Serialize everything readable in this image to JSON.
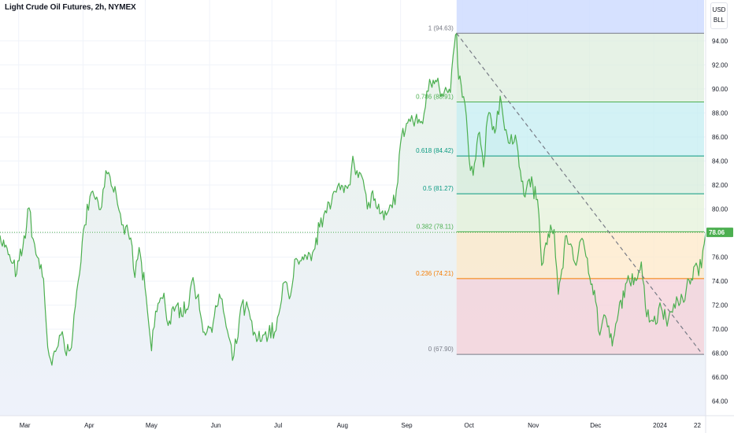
{
  "header": {
    "title": "Light Crude Oil Futures, 2h, NYMEX"
  },
  "units": {
    "currency": "USD",
    "volume_unit": "BLL"
  },
  "current_price_label": "78.06",
  "chart_data": {
    "type": "line",
    "title": "Light Crude Oil Futures, 2h, NYMEX",
    "xlabel": "",
    "ylabel": "",
    "ylim": [
      62.8,
      97.4
    ],
    "x_tick_labels": [
      "Mar",
      "Apr",
      "May",
      "Jun",
      "Jul",
      "Aug",
      "Sep",
      "Oct",
      "Nov",
      "Dec",
      "2024",
      "22"
    ],
    "y_ticks": [
      "64.00",
      "66.00",
      "68.00",
      "70.00",
      "72.00",
      "74.00",
      "76.00",
      "78.00",
      "80.00",
      "82.00",
      "84.00",
      "86.00",
      "88.00",
      "90.00",
      "92.00",
      "94.00"
    ],
    "series": [
      {
        "key_points": [
          [
            "2023-02-20",
            77.8
          ],
          [
            "2023-02-24",
            76.2
          ],
          [
            "2023-02-28",
            74.6
          ],
          [
            "2023-03-03",
            76.8
          ],
          [
            "2023-03-06",
            80.1
          ],
          [
            "2023-03-08",
            77.5
          ],
          [
            "2023-03-10",
            76.0
          ],
          [
            "2023-03-13",
            74.2
          ],
          [
            "2023-03-15",
            68.5
          ],
          [
            "2023-03-17",
            67.0
          ],
          [
            "2023-03-20",
            68.6
          ],
          [
            "2023-03-22",
            69.8
          ],
          [
            "2023-03-24",
            67.8
          ],
          [
            "2023-03-27",
            69.5
          ],
          [
            "2023-03-29",
            73.2
          ],
          [
            "2023-03-31",
            75.6
          ],
          [
            "2023-04-03",
            80.4
          ],
          [
            "2023-04-05",
            81.4
          ],
          [
            "2023-04-07",
            80.8
          ],
          [
            "2023-04-10",
            80.2
          ],
          [
            "2023-04-12",
            83.2
          ],
          [
            "2023-04-14",
            82.7
          ],
          [
            "2023-04-17",
            81.2
          ],
          [
            "2023-04-19",
            79.6
          ],
          [
            "2023-04-21",
            77.9
          ],
          [
            "2023-04-24",
            77.6
          ],
          [
            "2023-04-26",
            74.3
          ],
          [
            "2023-04-28",
            76.8
          ],
          [
            "2023-05-02",
            71.6
          ],
          [
            "2023-05-04",
            68.2
          ],
          [
            "2023-05-06",
            71.5
          ],
          [
            "2023-05-10",
            73.0
          ],
          [
            "2023-05-12",
            70.3
          ],
          [
            "2023-05-15",
            71.5
          ],
          [
            "2023-05-18",
            71.8
          ],
          [
            "2023-05-22",
            72.0
          ],
          [
            "2023-05-24",
            74.3
          ],
          [
            "2023-05-26",
            72.7
          ],
          [
            "2023-05-30",
            69.5
          ],
          [
            "2023-06-01",
            70.1
          ],
          [
            "2023-06-05",
            72.0
          ],
          [
            "2023-06-07",
            72.5
          ],
          [
            "2023-06-09",
            70.2
          ],
          [
            "2023-06-12",
            67.4
          ],
          [
            "2023-06-14",
            68.8
          ],
          [
            "2023-06-16",
            71.8
          ],
          [
            "2023-06-20",
            71.5
          ],
          [
            "2023-06-22",
            69.5
          ],
          [
            "2023-06-26",
            69.0
          ],
          [
            "2023-06-28",
            69.8
          ],
          [
            "2023-07-03",
            69.9
          ],
          [
            "2023-07-05",
            71.8
          ],
          [
            "2023-07-07",
            73.9
          ],
          [
            "2023-07-10",
            72.8
          ],
          [
            "2023-07-12",
            75.8
          ],
          [
            "2023-07-14",
            75.4
          ],
          [
            "2023-07-18",
            75.8
          ],
          [
            "2023-07-20",
            75.7
          ],
          [
            "2023-07-24",
            78.5
          ],
          [
            "2023-07-26",
            79.5
          ],
          [
            "2023-07-28",
            80.6
          ],
          [
            "2023-08-01",
            81.4
          ],
          [
            "2023-08-03",
            81.6
          ],
          [
            "2023-08-07",
            82.0
          ],
          [
            "2023-08-09",
            84.4
          ],
          [
            "2023-08-11",
            83.2
          ],
          [
            "2023-08-14",
            82.4
          ],
          [
            "2023-08-16",
            80.0
          ],
          [
            "2023-08-18",
            81.3
          ],
          [
            "2023-08-22",
            79.6
          ],
          [
            "2023-08-24",
            79.1
          ],
          [
            "2023-08-28",
            80.1
          ],
          [
            "2023-08-30",
            81.6
          ],
          [
            "2023-09-01",
            85.5
          ],
          [
            "2023-09-05",
            87.5
          ],
          [
            "2023-09-07",
            87.3
          ],
          [
            "2023-09-11",
            87.3
          ],
          [
            "2023-09-13",
            88.5
          ],
          [
            "2023-09-15",
            90.8
          ],
          [
            "2023-09-19",
            90.9
          ],
          [
            "2023-09-21",
            89.6
          ],
          [
            "2023-09-25",
            89.7
          ],
          [
            "2023-09-27",
            93.7
          ],
          [
            "2023-09-28",
            94.63
          ],
          [
            "2023-09-29",
            90.8
          ],
          [
            "2023-10-02",
            88.8
          ],
          [
            "2023-10-04",
            84.2
          ],
          [
            "2023-10-06",
            82.8
          ],
          [
            "2023-10-09",
            86.4
          ],
          [
            "2023-10-11",
            83.5
          ],
          [
            "2023-10-13",
            87.7
          ],
          [
            "2023-10-17",
            86.7
          ],
          [
            "2023-10-19",
            89.4
          ],
          [
            "2023-10-20",
            88.3
          ],
          [
            "2023-10-23",
            85.5
          ],
          [
            "2023-10-25",
            85.4
          ],
          [
            "2023-10-27",
            85.5
          ],
          [
            "2023-10-31",
            81.0
          ],
          [
            "2023-11-02",
            82.5
          ],
          [
            "2023-11-06",
            80.8
          ],
          [
            "2023-11-08",
            75.3
          ],
          [
            "2023-11-10",
            77.2
          ],
          [
            "2023-11-14",
            78.3
          ],
          [
            "2023-11-16",
            72.9
          ],
          [
            "2023-11-20",
            77.8
          ],
          [
            "2023-11-22",
            77.1
          ],
          [
            "2023-11-24",
            75.5
          ],
          [
            "2023-11-28",
            77.4
          ],
          [
            "2023-11-30",
            75.9
          ],
          [
            "2023-12-04",
            72.3
          ],
          [
            "2023-12-06",
            69.5
          ],
          [
            "2023-12-08",
            71.2
          ],
          [
            "2023-12-12",
            68.6
          ],
          [
            "2023-12-13",
            69.5
          ],
          [
            "2023-12-15",
            71.4
          ],
          [
            "2023-12-19",
            73.9
          ],
          [
            "2023-12-21",
            73.6
          ],
          [
            "2023-12-26",
            75.6
          ],
          [
            "2023-12-28",
            71.8
          ],
          [
            "2024-01-02",
            70.4
          ],
          [
            "2024-01-04",
            72.2
          ],
          [
            "2024-01-08",
            70.8
          ],
          [
            "2024-01-10",
            71.4
          ],
          [
            "2024-01-12",
            72.7
          ],
          [
            "2024-01-16",
            72.4
          ],
          [
            "2024-01-18",
            74.1
          ],
          [
            "2024-01-22",
            75.2
          ],
          [
            "2024-01-24",
            75.1
          ],
          [
            "2024-01-26",
            78.06
          ]
        ]
      }
    ],
    "fibonacci_retracement": {
      "levels": [
        {
          "label": "1 (94.63)",
          "ratio": 1,
          "price": 94.63,
          "fill": "#e6e6e6",
          "line": "#787b86"
        },
        {
          "label": "0.786 (88.91)",
          "ratio": 0.786,
          "price": 88.91,
          "fill": "#ddeedd",
          "line": "#4caf50"
        },
        {
          "label": "0.618 (84.42)",
          "ratio": 0.618,
          "price": 84.42,
          "fill": "#c4eef2",
          "line": "#089981"
        },
        {
          "label": "0.5 (81.27)",
          "ratio": 0.5,
          "price": 81.27,
          "fill": "#d7ecdb",
          "line": "#089981"
        },
        {
          "label": "0.382 (78.11)",
          "ratio": 0.382,
          "price": 78.11,
          "fill": "#e4f1d9",
          "line": "#4caf50"
        },
        {
          "label": "0.236 (74.21)",
          "ratio": 0.236,
          "price": 74.21,
          "fill": "#fde8c8",
          "line": "#f57c00"
        },
        {
          "label": "0 (67.90)",
          "ratio": 0,
          "price": 67.9,
          "fill": "#f4d0d8",
          "line": "#787b86"
        }
      ],
      "extension_fill": "#cfdcff",
      "trend_line": {
        "start_date": "2023-09-28",
        "start_price": 94.63,
        "end_date": "2024-01-26",
        "end_price": 67.9
      }
    },
    "grid": true,
    "colors": {
      "line": "#4caf50",
      "area_top": "#e9f3ea",
      "area_bottom": "#eef2fb",
      "price_label_bg": "#4caf50"
    }
  }
}
